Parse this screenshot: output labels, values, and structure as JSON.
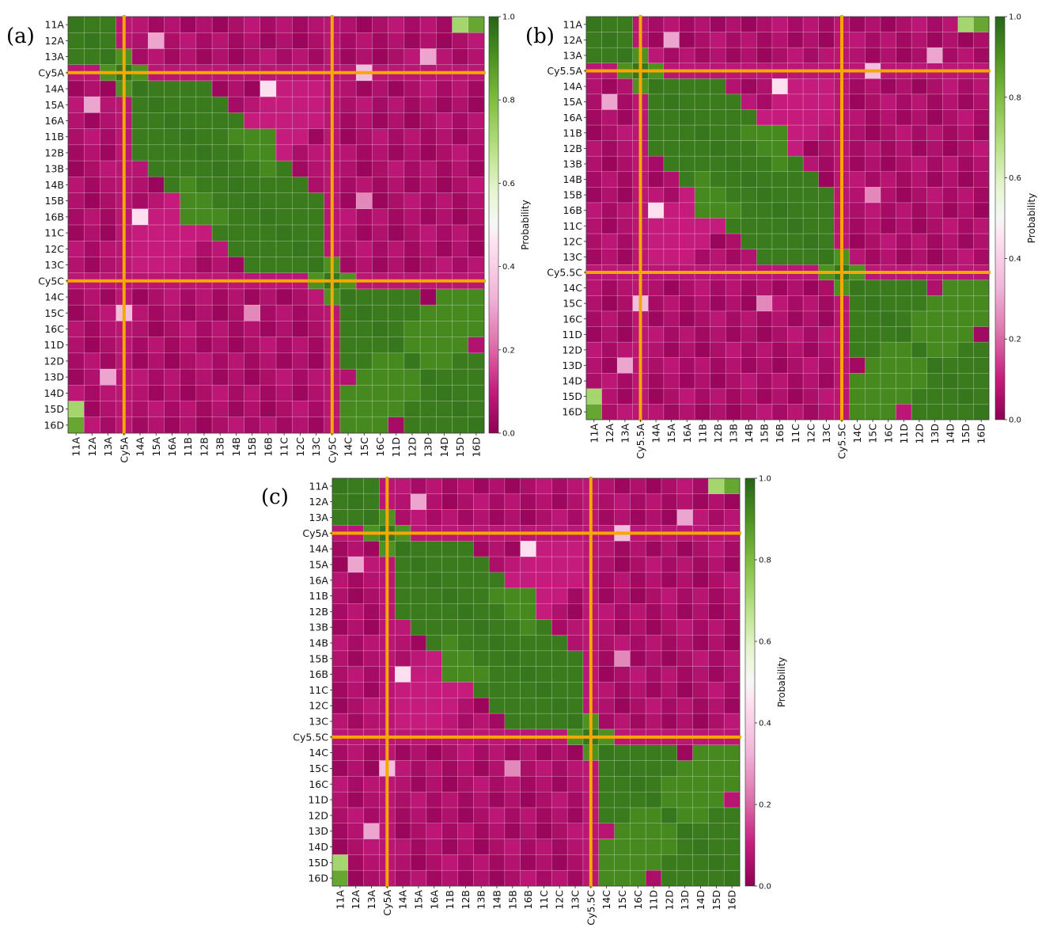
{
  "chart_data": [
    {
      "type": "heatmap",
      "panel_label": "(a)",
      "labels": [
        "11A",
        "12A",
        "13A",
        "Cy5A",
        "14A",
        "15A",
        "16A",
        "11B",
        "12B",
        "13B",
        "14B",
        "15B",
        "16B",
        "11C",
        "12C",
        "13C",
        "Cy5C",
        "14C",
        "15C",
        "16C",
        "11D",
        "12D",
        "13D",
        "14D",
        "15D",
        "16D"
      ],
      "highlight_labels": [
        "Cy5A",
        "Cy5C"
      ],
      "colorbar": {
        "label": "Probability",
        "range": [
          0.0,
          1.0
        ],
        "ticks": [
          "0.0",
          "0.2",
          "0.4",
          "0.6",
          "0.8",
          "1.0"
        ]
      },
      "highlight_color": "#f5a800"
    },
    {
      "type": "heatmap",
      "panel_label": "(b)",
      "labels": [
        "11A",
        "12A",
        "13A",
        "Cy5.5A",
        "14A",
        "15A",
        "16A",
        "11B",
        "12B",
        "13B",
        "14B",
        "15B",
        "16B",
        "11C",
        "12C",
        "13C",
        "Cy5.5C",
        "14C",
        "15C",
        "16C",
        "11D",
        "12D",
        "13D",
        "14D",
        "15D",
        "16D"
      ],
      "highlight_labels": [
        "Cy5.5A",
        "Cy5.5C"
      ],
      "colorbar": {
        "label": "Probability",
        "range": [
          0.0,
          1.0
        ],
        "ticks": [
          "0.0",
          "0.2",
          "0.4",
          "0.6",
          "0.8",
          "1.0"
        ]
      },
      "highlight_color": "#f5a800"
    },
    {
      "type": "heatmap",
      "panel_label": "(c)",
      "labels": [
        "11A",
        "12A",
        "13A",
        "Cy5A",
        "14A",
        "15A",
        "16A",
        "11B",
        "12B",
        "13B",
        "14B",
        "15B",
        "16B",
        "11C",
        "12C",
        "13C",
        "Cy5.5C",
        "14C",
        "15C",
        "16C",
        "11D",
        "12D",
        "13D",
        "14D",
        "15D",
        "16D"
      ],
      "highlight_labels": [
        "Cy5A",
        "Cy5.5C"
      ],
      "colorbar": {
        "label": "Probability",
        "range": [
          0.0,
          1.0
        ],
        "ticks": [
          "0.0",
          "0.2",
          "0.4",
          "0.6",
          "0.8",
          "1.0"
        ]
      },
      "highlight_color": "#f5a800"
    }
  ]
}
